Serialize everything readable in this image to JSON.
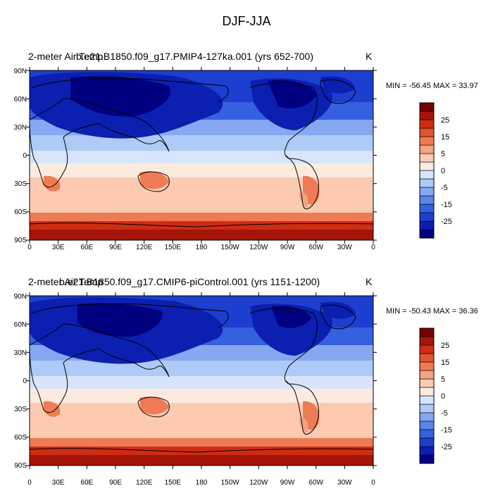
{
  "figure_title": "DJF-JJA",
  "colors": {
    "levels": [
      "#000080",
      "#0b1fb0",
      "#1d3fd0",
      "#3560e0",
      "#5a84ec",
      "#86a8f2",
      "#aecaf7",
      "#d6e5fb",
      "#fdeadf",
      "#fbcab0",
      "#f6a47f",
      "#ef7b55",
      "#e4532f",
      "#cf2d13",
      "#a5150a",
      "#7a0000"
    ]
  },
  "panels": [
    {
      "id": "top",
      "title_left": "2-meter Air Temp",
      "title_center": "b.e21.B1850.f09_g17.PMIP4-127ka.001 (yrs 652-700)",
      "units": "K",
      "minmax_text": "MIN = -56.45 MAX =  33.97"
    },
    {
      "id": "bottom",
      "title_left": "2-meter Air Temp",
      "title_center": "b.e21.B1850.f09_g17.CMIP6-piControl.001 (yrs 1151-1200)",
      "units": "K",
      "minmax_text": "MIN = -50.43 MAX =  36.36"
    }
  ],
  "lat_labels": [
    "90N",
    "60N",
    "30N",
    "0",
    "30S",
    "60S",
    "90S"
  ],
  "lon_labels": [
    "0",
    "30E",
    "60E",
    "90E",
    "120E",
    "150E",
    "180",
    "150W",
    "120W",
    "90W",
    "60W",
    "30W",
    "0"
  ],
  "colorbar_labels": [
    "25",
    "15",
    "5",
    "0",
    "-5",
    "-15",
    "-25"
  ]
}
